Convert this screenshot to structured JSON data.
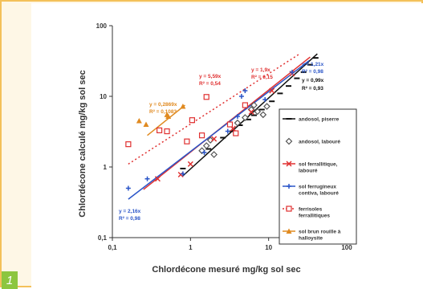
{
  "badge": "1",
  "chart_data": {
    "type": "scatter",
    "title": "",
    "xlabel": "Chlordécone mesuré mg/kg sol sec",
    "ylabel": "Chlordécone calculé mg/kg sol sec",
    "x_scale": "log",
    "y_scale": "log",
    "xlim": [
      0.1,
      100
    ],
    "ylim": [
      0.1,
      100
    ],
    "x_ticks": [
      "0,1",
      "1",
      "10",
      "100"
    ],
    "y_ticks": [
      "0,1",
      "1",
      "10",
      "100"
    ],
    "grid": false,
    "legend_position": "right",
    "series": [
      {
        "name": "andosol, piserre",
        "color": "#111111",
        "marker": "dash",
        "points": [
          [
            0.8,
            0.95
          ],
          [
            1.7,
            1.8
          ],
          [
            2.6,
            2.6
          ],
          [
            3.4,
            3.2
          ],
          [
            4.3,
            3.9
          ],
          [
            5.5,
            4.7
          ],
          [
            6.5,
            5.4
          ],
          [
            8.2,
            6.5
          ],
          [
            11,
            8.5
          ],
          [
            14,
            11
          ],
          [
            18,
            14
          ],
          [
            23,
            18
          ],
          [
            28,
            22
          ],
          [
            34,
            28
          ],
          [
            40,
            35
          ]
        ],
        "fit": {
          "x": [
            0.8,
            42
          ],
          "y": [
            0.75,
            40
          ]
        }
      },
      {
        "name": "andosol, labouré",
        "color": "#555555",
        "marker": "diamond-open",
        "points": [
          [
            1.4,
            1.7
          ],
          [
            1.6,
            2.0
          ],
          [
            1.8,
            2.4
          ],
          [
            2.0,
            1.5
          ],
          [
            4.0,
            4.2
          ],
          [
            5.0,
            5.0
          ],
          [
            6.0,
            6.5
          ],
          [
            6.5,
            7.5
          ],
          [
            7.2,
            6.1
          ],
          [
            8.5,
            5.5
          ],
          [
            9.5,
            7.2
          ]
        ]
      },
      {
        "name": "sol ferrallitique, labouré",
        "color": "#e03030",
        "marker": "x",
        "points": [
          [
            0.38,
            0.68
          ],
          [
            0.75,
            0.78
          ],
          [
            1.0,
            1.1
          ],
          [
            2.0,
            2.5
          ],
          [
            3.5,
            3.5
          ],
          [
            6.0,
            6.0
          ],
          [
            11,
            12
          ],
          [
            20,
            21
          ]
        ],
        "fit": {
          "x": [
            0.25,
            34
          ],
          "y": [
            0.48,
            36
          ]
        }
      },
      {
        "name": "sol ferrugineux contiva, labouré",
        "color": "#2a55c8",
        "marker": "plus",
        "points": [
          [
            0.16,
            0.5
          ],
          [
            0.28,
            0.68
          ],
          [
            0.8,
            0.8
          ],
          [
            1.5,
            1.6
          ],
          [
            3.0,
            3.2
          ],
          [
            4.0,
            5.2
          ],
          [
            4.5,
            10
          ],
          [
            5.0,
            12
          ],
          [
            9.0,
            9.0
          ],
          [
            20,
            22
          ]
        ],
        "fit": {
          "x": [
            0.16,
            33
          ],
          "y": [
            0.35,
            32
          ]
        }
      },
      {
        "name": "ferrisoles ferrallitiques",
        "color": "#e03030",
        "marker": "square-open",
        "points": [
          [
            0.16,
            2.1
          ],
          [
            0.4,
            3.3
          ],
          [
            0.5,
            3.2
          ],
          [
            0.9,
            2.3
          ],
          [
            1.05,
            4.6
          ],
          [
            1.4,
            2.8
          ],
          [
            1.6,
            9.8
          ],
          [
            3.2,
            4.0
          ],
          [
            3.8,
            3.0
          ],
          [
            5.0,
            7.5
          ]
        ],
        "fit": {
          "x": [
            0.16,
            25
          ],
          "y": [
            1.1,
            40
          ],
          "dashed": true
        }
      },
      {
        "name": "sol brun rouille à halloysite",
        "color": "#e08a20",
        "marker": "triangle",
        "points": [
          [
            0.22,
            4.5
          ],
          [
            0.27,
            4.0
          ],
          [
            0.5,
            5.5
          ],
          [
            0.52,
            5.2
          ],
          [
            0.8,
            7.2
          ]
        ],
        "fit": {
          "x": [
            0.28,
            0.85
          ],
          "y": [
            2.8,
            7.5
          ]
        }
      }
    ],
    "annotations": [
      {
        "text": "y = 0,2869x",
        "color": "#e08a20"
      },
      {
        "text": "R² = 0,1083",
        "color": "#e08a20"
      },
      {
        "text": "y = 5,59x",
        "color": "#e03030"
      },
      {
        "text": "R² = 0,54",
        "color": "#e03030"
      },
      {
        "text": "y = 1,9x",
        "color": "#e03030"
      },
      {
        "text": "R² = 0,15",
        "color": "#e03030"
      },
      {
        "text": "y = 1,21x",
        "color": "#2a55c8"
      },
      {
        "text": "R² = 0,98",
        "color": "#2a55c8"
      },
      {
        "text": "y = 0,99x",
        "color": "#111111"
      },
      {
        "text": "R² = 0,93",
        "color": "#111111"
      },
      {
        "text": "y = 2,16x",
        "color": "#2a55c8"
      },
      {
        "text": "R² = 0,98",
        "color": "#2a55c8"
      }
    ]
  }
}
